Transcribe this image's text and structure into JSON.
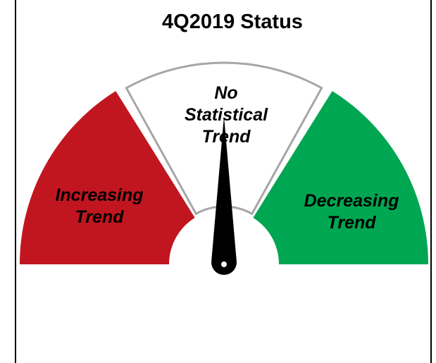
{
  "title": "4Q2019 Status",
  "segments": [
    {
      "lines": [
        "Increasing",
        "Trend"
      ]
    },
    {
      "lines": [
        "No",
        "Statistical",
        "Trend"
      ]
    },
    {
      "lines": [
        "Decreasing",
        "Trend"
      ]
    }
  ]
}
